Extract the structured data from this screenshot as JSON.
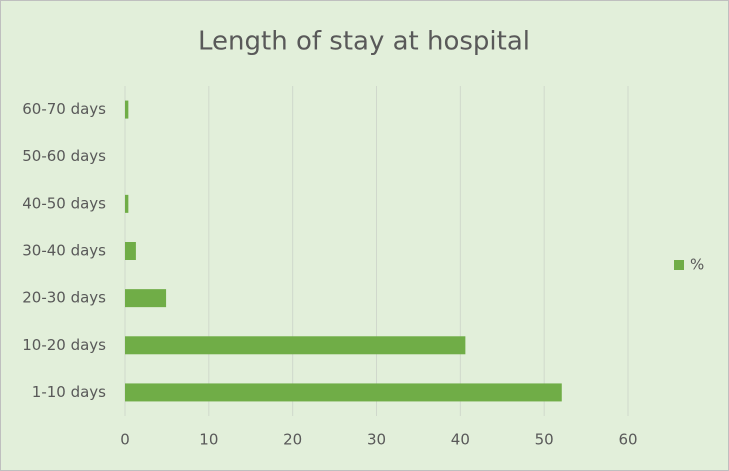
{
  "chart_data": {
    "type": "bar",
    "orientation": "horizontal",
    "title": "Length of stay at hospital",
    "categories": [
      "1-10 days",
      "10-20 days",
      "20-30 days",
      "30-40 days",
      "40-50 days",
      "50-60 days",
      "60-70 days"
    ],
    "series": [
      {
        "name": "%",
        "color": "#70ad47",
        "values": [
          52.1,
          40.6,
          4.9,
          1.3,
          0.4,
          0,
          0.4
        ]
      }
    ],
    "xlim": [
      0,
      60
    ],
    "xticks": [
      0,
      10,
      20,
      30,
      40,
      50,
      60
    ],
    "grid": true,
    "legend": "right"
  }
}
